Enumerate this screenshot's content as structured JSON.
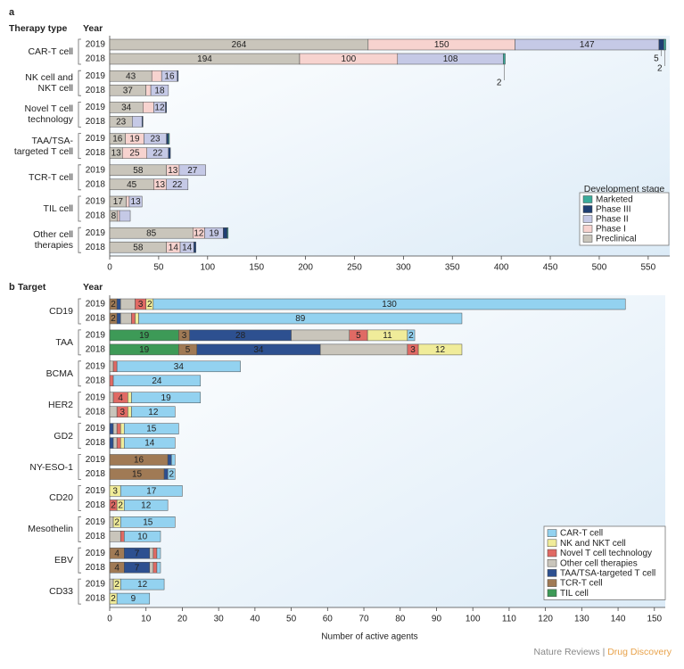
{
  "chart_data": [
    {
      "type": "bar",
      "orientation": "horizontal",
      "stacked": true,
      "panel_label": "a",
      "group_header": "Therapy type",
      "year_header": "Year",
      "groups": [
        "CAR-T cell",
        "NK cell and NKT cell",
        "Novel T cell technology",
        "TAA/TSA-targeted T cell",
        "TCR-T cell",
        "TIL cell",
        "Other cell therapies"
      ],
      "categories": [
        "2019",
        "2018",
        "2019",
        "2018",
        "2019",
        "2018",
        "2019",
        "2018",
        "2019",
        "2018",
        "2019",
        "2018",
        "2019",
        "2018"
      ],
      "series": [
        {
          "name": "Preclinical",
          "color": "#c9c5bb",
          "values": [
            264,
            194,
            43,
            37,
            34,
            23,
            16,
            13,
            58,
            45,
            17,
            8,
            85,
            58
          ]
        },
        {
          "name": "Phase I",
          "color": "#f7d3cf",
          "values": [
            150,
            100,
            10,
            5,
            11,
            0,
            19,
            25,
            13,
            13,
            3,
            2,
            12,
            14
          ]
        },
        {
          "name": "Phase II",
          "color": "#c5c9e6",
          "values": [
            147,
            108,
            16,
            18,
            12,
            10,
            23,
            22,
            27,
            22,
            13,
            11,
            19,
            14
          ]
        },
        {
          "name": "Phase III",
          "color": "#1f3f73",
          "values": [
            5,
            0,
            1,
            0,
            1,
            1,
            2,
            2,
            0,
            0,
            0,
            0,
            4,
            2
          ]
        },
        {
          "name": "Marketed",
          "color": "#3bab9b",
          "values": [
            2,
            2,
            0,
            0,
            0,
            0,
            1,
            0,
            0,
            0,
            0,
            0,
            1,
            0
          ]
        }
      ],
      "xlim": [
        0,
        572
      ],
      "xticks": [
        0,
        50,
        100,
        150,
        200,
        250,
        300,
        350,
        400,
        450,
        500,
        550
      ],
      "legend_title": "Development stage",
      "legend": "lower right"
    },
    {
      "type": "bar",
      "orientation": "horizontal",
      "stacked": true,
      "panel_label": "b",
      "group_header": "Target",
      "year_header": "Year",
      "groups": [
        "CD19",
        "TAA",
        "BCMA",
        "HER2",
        "GD2",
        "NY-ESO-1",
        "CD20",
        "Mesothelin",
        "EBV",
        "CD33"
      ],
      "categories": [
        "2019",
        "2018",
        "2019",
        "2018",
        "2019",
        "2018",
        "2019",
        "2018",
        "2019",
        "2018",
        "2019",
        "2018",
        "2019",
        "2018",
        "2019",
        "2018",
        "2019",
        "2018",
        "2019",
        "2018"
      ],
      "series": [
        {
          "name": "TIL cell",
          "color": "#3d9a57",
          "values": [
            0,
            0,
            19,
            19,
            0,
            0,
            0,
            0,
            0,
            0,
            0,
            0,
            0,
            0,
            0,
            0,
            0,
            0,
            0,
            0
          ]
        },
        {
          "name": "TCR-T cell",
          "color": "#a07a55",
          "values": [
            2,
            2,
            3,
            5,
            0,
            0,
            0,
            0,
            0,
            0,
            16,
            15,
            0,
            0,
            0,
            0,
            4,
            4,
            0,
            0
          ]
        },
        {
          "name": "TAA/TSA-targeted T cell",
          "color": "#2d5090",
          "values": [
            1,
            1,
            28,
            34,
            0,
            0,
            0,
            0,
            1,
            1,
            1,
            1,
            0,
            0,
            0,
            0,
            7,
            7,
            0,
            0
          ]
        },
        {
          "name": "Other cell therapies",
          "color": "#c9c5bb",
          "values": [
            4,
            3,
            16,
            24,
            1,
            0,
            1,
            2,
            1,
            1,
            0,
            0,
            0,
            0,
            1,
            3,
            1,
            1,
            1,
            0
          ]
        },
        {
          "name": "Novel T cell technology",
          "color": "#e06a64",
          "values": [
            3,
            1,
            5,
            3,
            1,
            1,
            4,
            3,
            1,
            1,
            0,
            0,
            0,
            2,
            0,
            1,
            1,
            1,
            0,
            0
          ]
        },
        {
          "name": "NK and NKT cell",
          "color": "#f0ec9a",
          "values": [
            2,
            1,
            11,
            12,
            0,
            0,
            1,
            1,
            1,
            1,
            0,
            0,
            3,
            2,
            2,
            0,
            0,
            0,
            2,
            2
          ]
        },
        {
          "name": "CAR-T cell",
          "color": "#93d2f0",
          "values": [
            130,
            89,
            2,
            0,
            34,
            24,
            19,
            12,
            15,
            14,
            1,
            2,
            17,
            12,
            15,
            10,
            1,
            1,
            12,
            9
          ]
        }
      ],
      "xlim": [
        0,
        153
      ],
      "xticks": [
        0,
        10,
        20,
        30,
        40,
        50,
        60,
        70,
        80,
        90,
        100,
        110,
        120,
        130,
        140,
        150
      ],
      "xlabel": "Number of active agents",
      "legend": "lower right"
    }
  ],
  "source_publisher": "Nature Reviews",
  "source_separator": "|",
  "source_journal": "Drug Discovery"
}
